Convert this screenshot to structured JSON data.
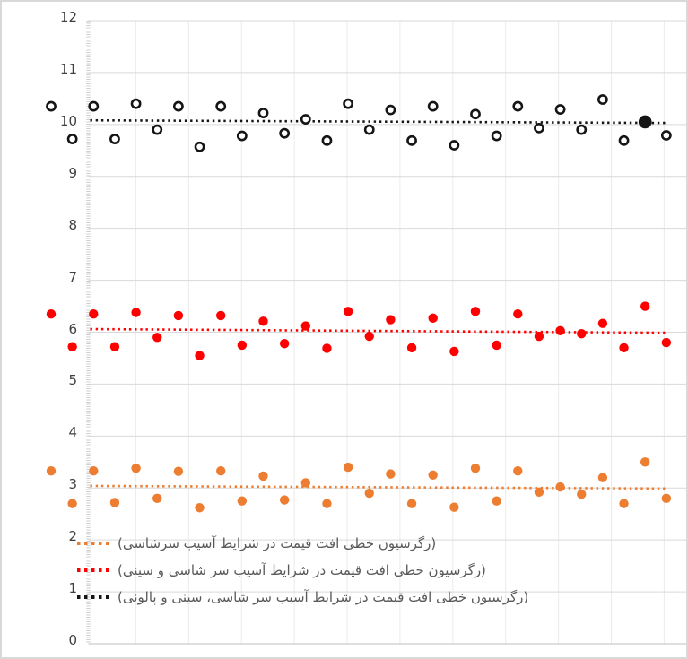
{
  "chart_data": {
    "type": "scatter",
    "title": "",
    "xlabel": "",
    "ylabel": "",
    "ylim": [
      0,
      12
    ],
    "y_ticks": [
      "0",
      "1",
      "2",
      "3",
      "4",
      "5",
      "6",
      "7",
      "8",
      "9",
      "10",
      "11",
      "12"
    ],
    "x_tick_labels_visible": false,
    "grid": {
      "horizontal": true,
      "vertical": true
    },
    "legend_position": "bottom-left-inside",
    "x": [
      1,
      2,
      3,
      4,
      5,
      6,
      7,
      8,
      9,
      10,
      11,
      12,
      13,
      14,
      15,
      16,
      17,
      18,
      19,
      20,
      21,
      22,
      23,
      24,
      25,
      26,
      27,
      28,
      29,
      30
    ],
    "series": [
      {
        "id": "series-black",
        "color": "#151515",
        "marker": "ring",
        "solid_point_index": 28,
        "values": [
          10.35,
          9.72,
          10.35,
          9.72,
          10.4,
          9.9,
          10.35,
          9.57,
          10.35,
          9.78,
          10.22,
          9.83,
          10.1,
          9.69,
          10.4,
          9.9,
          10.28,
          9.69,
          10.35,
          9.6,
          10.2,
          9.78,
          10.35,
          9.93,
          10.29,
          9.9,
          10.48,
          9.69,
          10.05,
          9.79
        ]
      },
      {
        "id": "series-red",
        "color": "#FF0000",
        "marker": "solid",
        "values": [
          6.35,
          5.72,
          6.35,
          5.72,
          6.38,
          5.9,
          6.32,
          5.55,
          6.32,
          5.75,
          6.21,
          5.78,
          6.12,
          5.69,
          6.4,
          5.92,
          6.24,
          5.7,
          6.27,
          5.63,
          6.4,
          5.75,
          6.35,
          5.92,
          6.03,
          5.97,
          6.17,
          5.7,
          6.5,
          5.8
        ]
      },
      {
        "id": "series-orange",
        "color": "#ED7D31",
        "marker": "solid",
        "values": [
          3.33,
          2.7,
          3.33,
          2.72,
          3.38,
          2.8,
          3.32,
          2.62,
          3.33,
          2.75,
          3.23,
          2.77,
          3.1,
          2.7,
          3.4,
          2.9,
          3.27,
          2.7,
          3.25,
          2.63,
          3.38,
          2.75,
          3.33,
          2.92,
          3.02,
          2.88,
          3.2,
          2.7,
          3.5,
          2.8
        ]
      }
    ],
    "trendlines": [
      {
        "id": "trend-orange",
        "color": "#ED7D31",
        "style": "dotted",
        "start_value": 3.04,
        "end_value": 2.99
      },
      {
        "id": "trend-red",
        "color": "#FF0000",
        "style": "dotted",
        "start_value": 6.06,
        "end_value": 5.99
      },
      {
        "id": "trend-black",
        "color": "#151515",
        "style": "dotted",
        "start_value": 10.08,
        "end_value": 10.03
      }
    ],
    "legend": {
      "entries": [
        {
          "label": "(رگرسیون خطی افت قیمت در شرایط آسیب سرشاسی)",
          "color": "#ED7D31"
        },
        {
          "label": "(رگرسیون خطی افت قیمت در شرایط آسیب سر شاسی و سینی)",
          "color": "#FF0000"
        },
        {
          "label": "(رگرسیون خطی افت قیمت در شرایط آسیب سر شاسی، سینی و پالونی)",
          "color": "#151515"
        }
      ]
    },
    "colors": {
      "grid_horizontal": "#d9d9d9",
      "grid_vertical": "#ebebeb",
      "axis": "#bfbfbf",
      "tick_ruler": "#cfcfcf",
      "y_label_text": "#404040",
      "legend_text": "#595959",
      "background": "#ffffff"
    }
  }
}
